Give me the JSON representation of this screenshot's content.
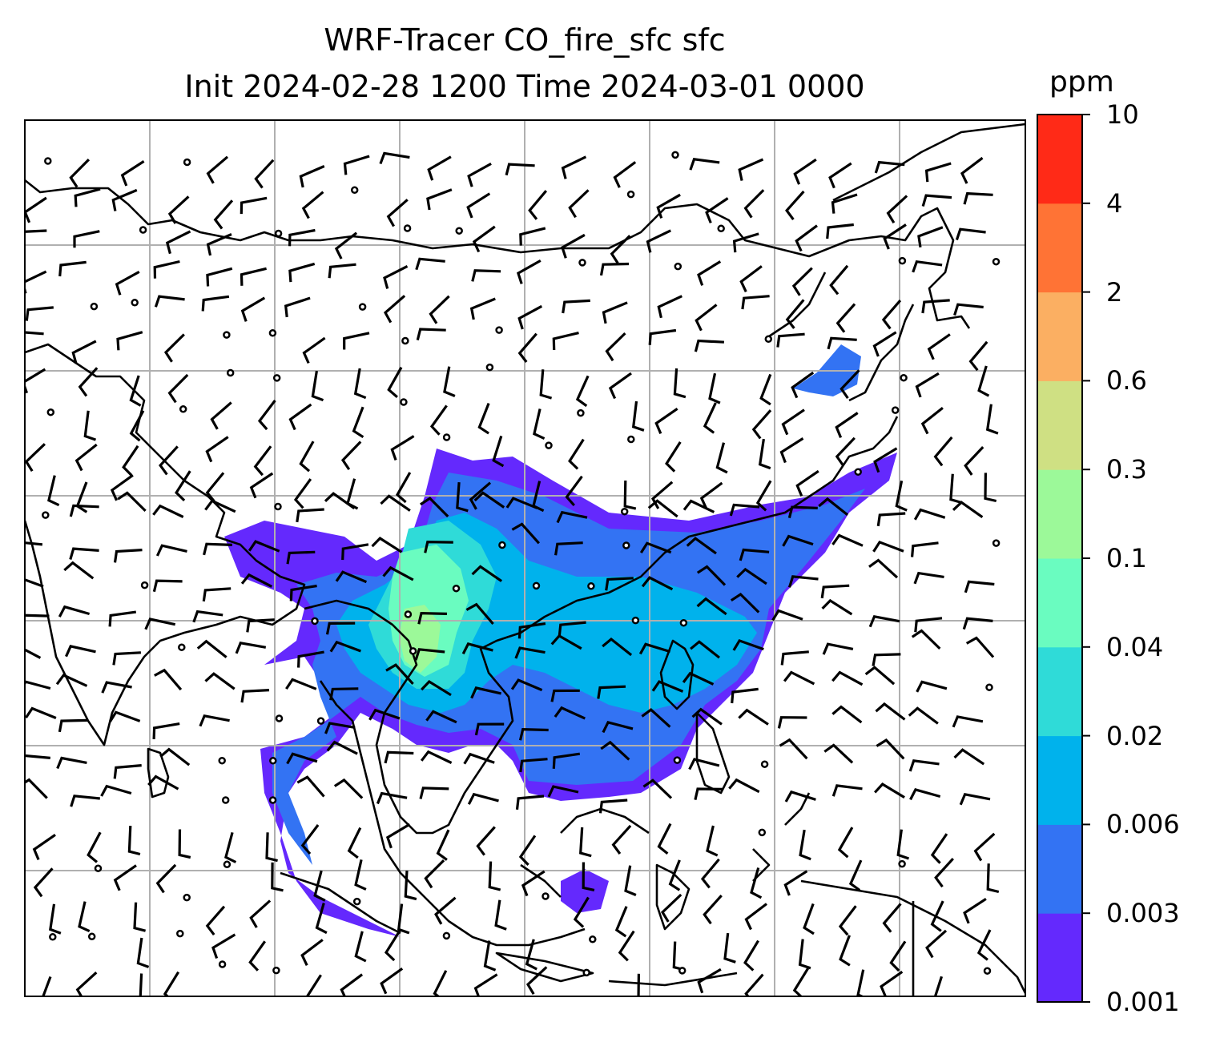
{
  "title": {
    "line1": "WRF-Tracer CO_fire_sfc sfc",
    "line2": "Init 2024-02-28 1200 Time 2024-03-01 0000"
  },
  "colorbar": {
    "unit": "ppm",
    "levels": [
      "0.001",
      "0.003",
      "0.006",
      "0.02",
      "0.04",
      "0.1",
      "0.3",
      "0.6",
      "2",
      "4",
      "10"
    ],
    "colors": [
      "#6429fd",
      "#3373f3",
      "#00b2ec",
      "#2fdbd8",
      "#6afcc0",
      "#9cf999",
      "#cfe083",
      "#fbaf62",
      "#ff7335",
      "#ff2a17"
    ]
  },
  "map": {
    "region": "South and East Asia",
    "graticule": true,
    "wind_barbs": true,
    "coastline_color": "#000000",
    "grid_color": "#b0b0b0"
  }
}
